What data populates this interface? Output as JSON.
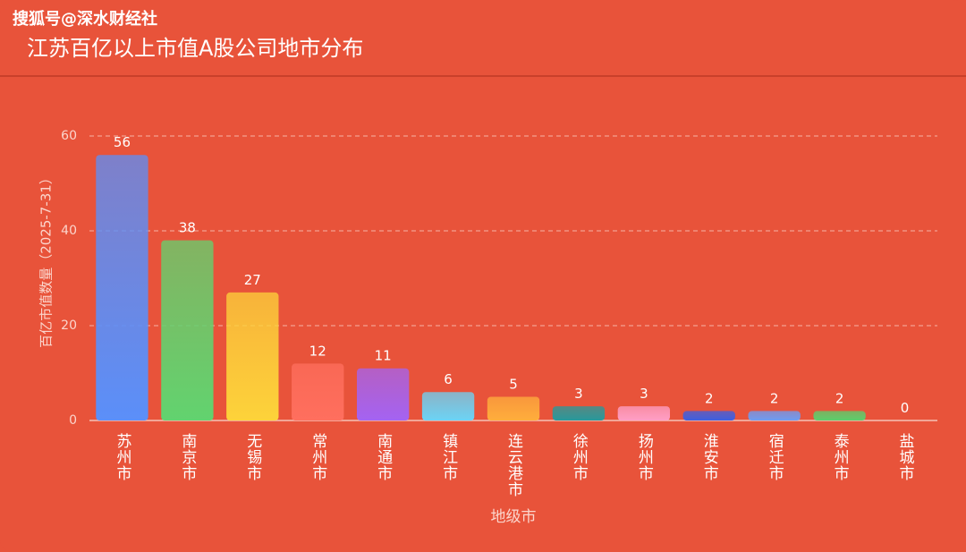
{
  "chart_data": {
    "type": "bar",
    "watermark": "搜狐号@深水财经社",
    "title": "江苏百亿以上市值A股公司地市分布",
    "x_label": "地级市",
    "y_label": "百亿市值数量（2025-7-31）",
    "categories": [
      "苏州市",
      "南京市",
      "无锡市",
      "常州市",
      "南通市",
      "镇江市",
      "连云港市",
      "徐州市",
      "扬州市",
      "淮安市",
      "宿迁市",
      "泰州市",
      "盐城市"
    ],
    "values": [
      56,
      38,
      27,
      12,
      11,
      6,
      5,
      3,
      3,
      2,
      2,
      2,
      0
    ],
    "colors": [
      "#5b8ff9",
      "#62d36f",
      "#fdd33a",
      "#ff6f5e",
      "#a463f2",
      "#6cd3f5",
      "#ffae3c",
      "#27999b",
      "#ff9fc6",
      "#3d5fe0",
      "#6d9cf3",
      "#5ccf6c",
      "#9aa0a6"
    ],
    "ylim": [
      0,
      60
    ],
    "yticks": [
      0,
      20,
      40,
      60
    ],
    "grid": true
  }
}
